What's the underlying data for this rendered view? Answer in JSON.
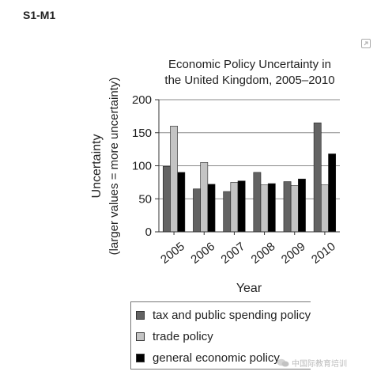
{
  "page": {
    "label": "S1-M1"
  },
  "colors": {
    "tax": "#636363",
    "trade": "#c4c4c4",
    "general": "#000000",
    "grid": "#888888"
  },
  "chart_data": {
    "type": "bar",
    "title": "Economic Policy Uncertainty in the United Kingdom, 2005–2010",
    "title_lines": [
      "Economic Policy Uncertainty in",
      "the United Kingdom, 2005–2010"
    ],
    "xlabel": "Year",
    "ylabel": "Uncertainty",
    "ylabel_sub": "(larger values = more uncertainty)",
    "ylim": [
      0,
      200
    ],
    "yticks": [
      0,
      50,
      100,
      150,
      200
    ],
    "grid": true,
    "legend_position": "bottom",
    "categories": [
      "2005",
      "2006",
      "2007",
      "2008",
      "2009",
      "2010"
    ],
    "series": [
      {
        "name": "tax and public spending policy",
        "color": "#636363",
        "values": [
          99,
          65,
          61,
          90,
          76,
          165
        ]
      },
      {
        "name": "trade policy",
        "color": "#c4c4c4",
        "values": [
          160,
          105,
          75,
          71,
          70,
          71
        ]
      },
      {
        "name": "general economic policy",
        "color": "#000000",
        "values": [
          90,
          72,
          77,
          73,
          80,
          118
        ]
      }
    ]
  },
  "watermark": {
    "text": "中国际教育培训"
  }
}
